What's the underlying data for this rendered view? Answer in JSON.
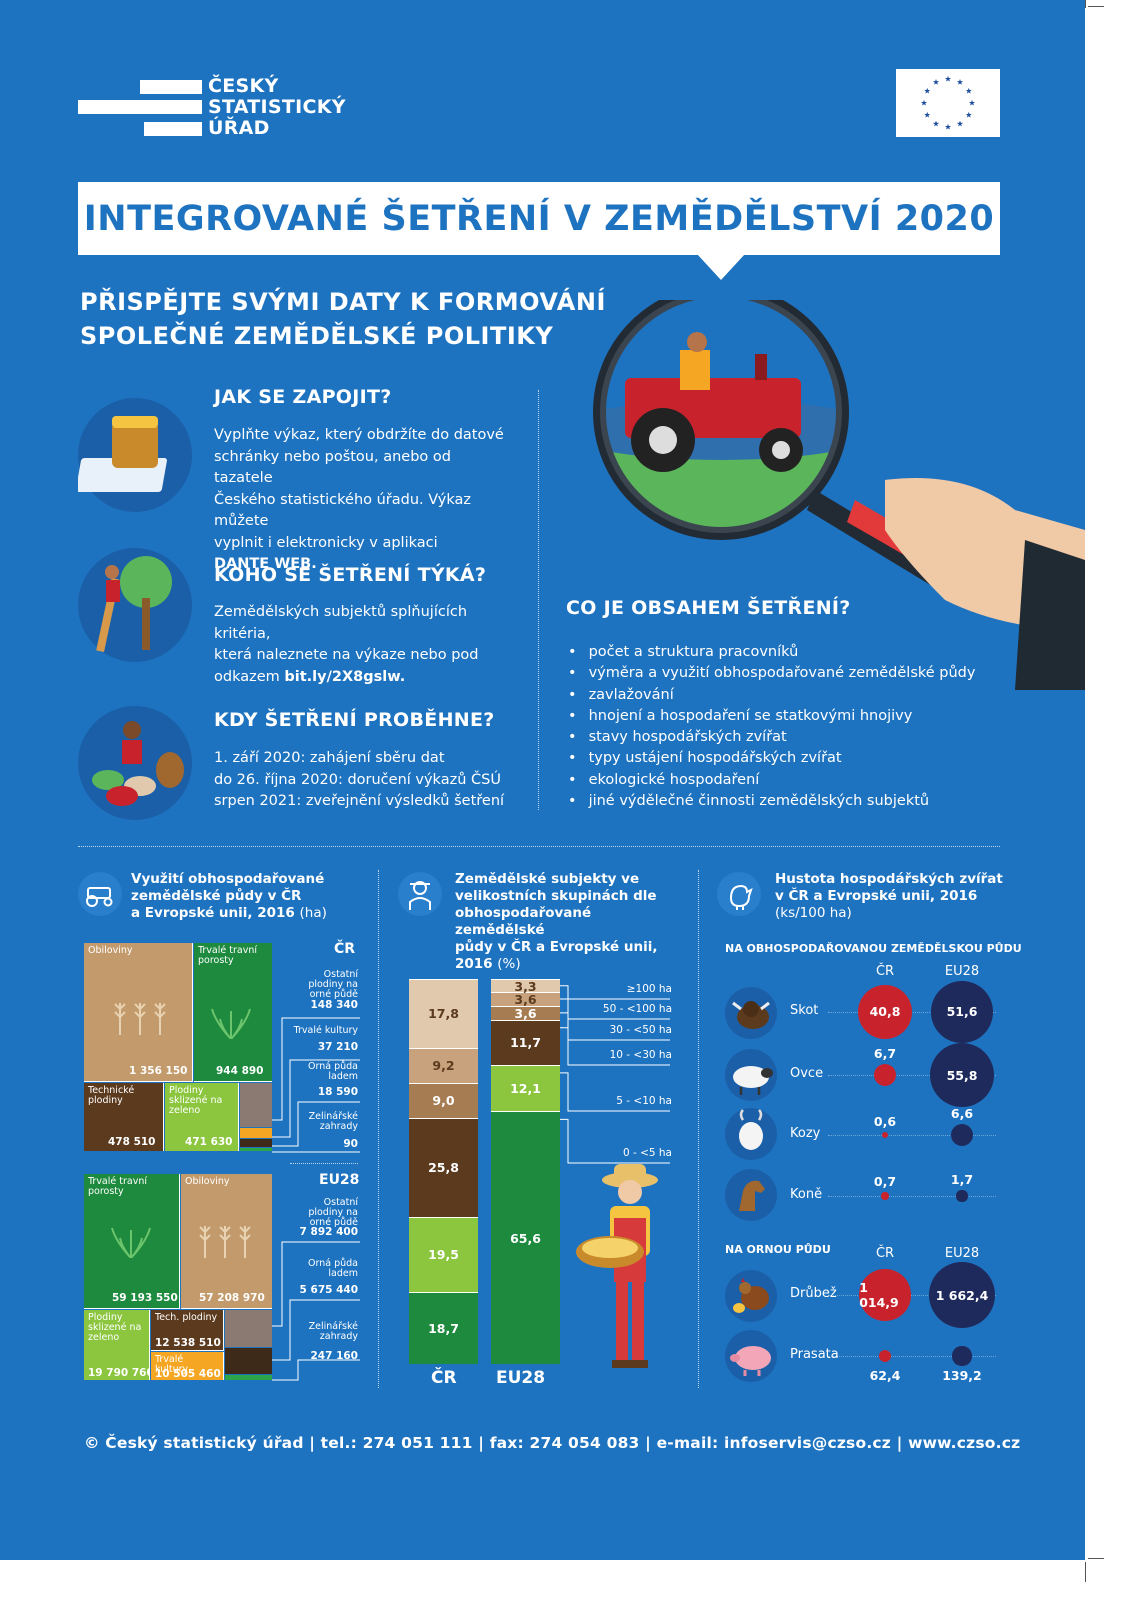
{
  "logo": {
    "line1": "ČESKÝ",
    "line2": "STATISTICKÝ",
    "line3": "ÚŘAD"
  },
  "title": "INTEGROVANÉ ŠETŘENÍ V ZEMĚDĚLSTVÍ 2020",
  "subtitle": {
    "line1": "PŘISPĚJTE SVÝMI DATY K FORMOVÁNÍ",
    "line2": "SPOLEČNÉ ZEMĚDĚLSKÉ POLITIKY"
  },
  "sections": {
    "join": {
      "heading": "JAK SE ZAPOJIT?",
      "lines": [
        "Vyplňte výkaz, který obdržíte do datové",
        "schránky  nebo poštou, anebo od tazatele",
        "Českého statistického úřadu. Výkaz můžete",
        "vyplnit i elektronicky v aplikaci"
      ],
      "bold": "DANTE WEB."
    },
    "who": {
      "heading": "KOHO SE ŠETŘENÍ TÝKÁ?",
      "lines": [
        "Zemědělských subjektů splňujících kritéria,",
        "která naleznete na výkaze nebo pod"
      ],
      "prefix": "odkazem ",
      "link": "bit.ly/2X8gslw."
    },
    "when": {
      "heading": "KDY ŠETŘENÍ PROBĚHNE?",
      "lines": [
        "1. září 2020: zahájení sběru dat",
        "do 26. října 2020: doručení výkazů ČSÚ",
        "srpen 2021: zveřejnění výsledků šetření"
      ]
    },
    "content": {
      "heading": "CO JE OBSAHEM ŠETŘENÍ?",
      "items": [
        "počet a struktura pracovníků",
        "výměra a využití obhospodařované zemědělské půdy",
        "zavlažování",
        "hnojení a hospodaření se statkovými hnojivy",
        "stavy hospodářských zvířat",
        "typy ustájení hospodářských zvířat",
        "ekologické hospodaření",
        "jiné výdělečné činnosti zemědělských subjektů"
      ]
    }
  },
  "chart1": {
    "title": [
      "Využití obhospodařované",
      "zemědělské půdy v ČR",
      "a Evropské unii, 2016 "
    ],
    "unit": "(ha)",
    "cr": {
      "label": "ČR",
      "cells": [
        {
          "name": "Obiloviny",
          "value": "1 356 150"
        },
        {
          "name": "Trvalé travní porosty",
          "value": "944 890"
        },
        {
          "name": "Technické plodiny",
          "value": "478 510"
        },
        {
          "name": "Plodiny sklizené na zeleno",
          "value": "471 630"
        }
      ],
      "side": [
        {
          "name": "Ostatní plodiny na orné půdě",
          "value": "148 340"
        },
        {
          "name": "Trvalé kultury",
          "value": "37 210"
        },
        {
          "name": "Orná půda ladem",
          "value": "18 590"
        },
        {
          "name": "Zelinářské zahrady",
          "value": "90"
        }
      ]
    },
    "eu": {
      "label": "EU28",
      "cells": [
        {
          "name": "Trvalé travní porosty",
          "value": "59 193 550"
        },
        {
          "name": "Obiloviny",
          "value": "57 208 970"
        },
        {
          "name": "Plodiny sklizené na zeleno",
          "value": "19 790 760"
        },
        {
          "name": "Tech. plodiny",
          "value": "12 538 510"
        },
        {
          "name": "Trvalé kultury",
          "value": "10 505 460"
        }
      ],
      "side": [
        {
          "name": "Ostatní plodiny na orné půdě",
          "value": "7 892 400"
        },
        {
          "name": "Orná půda ladem",
          "value": "5 675 440"
        },
        {
          "name": "Zelinářské zahrady",
          "value": "247 160"
        }
      ]
    }
  },
  "chart2": {
    "title": [
      "Zemědělské subjekty ve",
      "velikostních skupinách dle",
      "obhospodařované zemědělské",
      "půdy v ČR a Evropské unii,",
      "2016 "
    ],
    "unit": "(%)",
    "categories": [
      "0 - <5 ha",
      "5 - <10 ha",
      "10 - <30 ha",
      "30 - <50 ha",
      "50 - <100 ha",
      "≥100 ha"
    ],
    "colors": [
      "#1d8a3e",
      "#8cc63f",
      "#5c3a1e",
      "#a67c52",
      "#c7a27c",
      "#e0c9ac"
    ],
    "cr": {
      "label": "ČR",
      "values": [
        18.7,
        19.5,
        25.8,
        9.0,
        9.2,
        17.8
      ],
      "labels": [
        "18,7",
        "19,5",
        "25,8",
        "9,0",
        "9,2",
        "17,8"
      ]
    },
    "eu": {
      "label": "EU28",
      "values": [
        65.6,
        12.1,
        11.7,
        3.6,
        3.6,
        3.3
      ],
      "labels": [
        "65,6",
        "12,1",
        "11,7",
        "3,6",
        "3,6",
        "3,3"
      ]
    }
  },
  "chart3": {
    "title": [
      "Hustota hospodářských zvířat",
      "v ČR a Evropské unii, 2016"
    ],
    "unit": "(ks/100 ha)",
    "section1": "NA OBHOSPODAŘOVANOU ZEMĚDĚLSKOU PŮDU",
    "section2": "NA ORNOU PŮDU",
    "col_cr": "ČR",
    "col_eu": "EU28",
    "group1": [
      {
        "animal": "Skot",
        "cr": 40.8,
        "cr_label": "40,8",
        "eu": 51.6,
        "eu_label": "51,6"
      },
      {
        "animal": "Ovce",
        "cr": 6.7,
        "cr_label": "6,7",
        "eu": 55.8,
        "eu_label": "55,8"
      },
      {
        "animal": "Kozy",
        "cr": 0.6,
        "cr_label": "0,6",
        "eu": 6.6,
        "eu_label": "6,6"
      },
      {
        "animal": "Koně",
        "cr": 0.7,
        "cr_label": "0,7",
        "eu": 1.7,
        "eu_label": "1,7"
      }
    ],
    "group2": [
      {
        "animal": "Drůbež",
        "cr": 1014.9,
        "cr_label": "1 014,9",
        "eu": 1662.4,
        "eu_label": "1 662,4"
      },
      {
        "animal": "Prasata",
        "cr": 62.4,
        "cr_label": "62,4",
        "eu": 139.2,
        "eu_label": "139,2"
      }
    ],
    "colors": {
      "cr": "#c8232c",
      "eu": "#1f2a5c"
    }
  },
  "footer": "© Český statistický úřad  |  tel.: 274 051 111 | fax: 274 054 083 | e-mail: infoservis@czso.cz | www.czso.cz"
}
